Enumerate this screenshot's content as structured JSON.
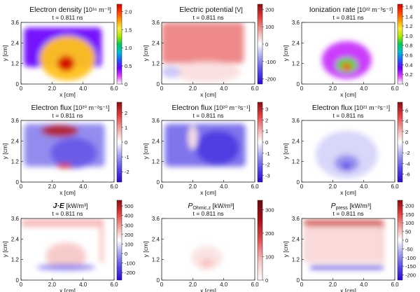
{
  "chart_data": [
    {
      "type": "heatmap",
      "title": "Electron density [10¹⁶ m⁻³]",
      "subtitle": "t = 0.811 ns",
      "xlabel": "x [cm]",
      "ylabel": "y [cm]",
      "xlim": [
        0,
        6.0
      ],
      "ylim": [
        0,
        3.6
      ],
      "x_ticks": [
        "0",
        "2.0",
        "4.0",
        "6.0"
      ],
      "y_ticks": [
        "0",
        "1.2",
        "2.4",
        "3.6"
      ],
      "colorbar": {
        "ticks": [
          "0",
          "0.5",
          "1.0",
          "1.5",
          "2.0"
        ],
        "range": [
          0,
          2.2
        ],
        "colormap": "rainbow"
      },
      "features": [
        {
          "shape": "slab",
          "x": [
            0.2,
            5.2
          ],
          "y": [
            1.0,
            3.3
          ],
          "level": 0.2
        },
        {
          "shape": "blob",
          "x": 3.0,
          "y": 1.5,
          "rx": 1.8,
          "ry": 1.3,
          "level": 0.75
        },
        {
          "shape": "blob",
          "x": 2.9,
          "y": 1.2,
          "rx": 0.55,
          "ry": 0.45,
          "level": 1.0
        }
      ]
    },
    {
      "type": "heatmap",
      "title": "Electric potential [V]",
      "subtitle": "t = 0.811 ns",
      "xlabel": "x [cm]",
      "ylabel": "y [cm]",
      "xlim": [
        0,
        6.0
      ],
      "ylim": [
        0,
        3.6
      ],
      "x_ticks": [
        "0",
        "2.0",
        "4.0",
        "6.0"
      ],
      "y_ticks": [
        "0",
        "1.2",
        "2.4",
        "3.6"
      ],
      "colorbar": {
        "ticks": [
          "200",
          "100",
          "0",
          "-100",
          "-200"
        ],
        "range": [
          -230,
          230
        ],
        "colormap": "diverging"
      },
      "features": [
        {
          "shape": "slab",
          "x": [
            0.0,
            5.3
          ],
          "y": [
            1.2,
            3.6
          ],
          "level": 0.45
        },
        {
          "shape": "blob",
          "x": 2.9,
          "y": 0.7,
          "rx": 2.2,
          "ry": 0.6,
          "level": 0.12
        },
        {
          "shape": "blob",
          "x": 0.6,
          "y": 0.7,
          "rx": 0.6,
          "ry": 0.35,
          "level": -0.2
        }
      ]
    },
    {
      "type": "heatmap",
      "title": "Ionization rate [10²² m⁻³s⁻¹]",
      "subtitle": "t = 0.811 ns",
      "xlabel": "x [cm]",
      "ylabel": "y [cm]",
      "xlim": [
        0,
        6.0
      ],
      "ylim": [
        0,
        3.6
      ],
      "x_ticks": [
        "0",
        "2.0",
        "4.0",
        "6.0"
      ],
      "y_ticks": [
        "0",
        "1.2",
        "2.4",
        "3.6"
      ],
      "colorbar": {
        "ticks": [
          "0",
          "0.2",
          "0.4",
          "0.6",
          "0.8",
          "1.0",
          "1.2",
          "1.4",
          "1.6"
        ],
        "range": [
          0,
          1.65
        ],
        "colormap": "rainbow"
      },
      "features": [
        {
          "shape": "blob",
          "x": 2.9,
          "y": 1.4,
          "rx": 1.6,
          "ry": 1.1,
          "level": 0.12
        },
        {
          "shape": "blob",
          "x": 2.9,
          "y": 1.1,
          "rx": 0.7,
          "ry": 0.45,
          "level": 0.55
        },
        {
          "shape": "blob",
          "x": 2.9,
          "y": 1.0,
          "rx": 0.3,
          "ry": 0.2,
          "level": 0.9
        }
      ]
    },
    {
      "type": "heatmap",
      "title": "Electron flux [10²⁰ m⁻²s⁻¹]",
      "subtitle": "t = 0.811 ns",
      "xlabel": "x [cm]",
      "ylabel": "y [cm]",
      "xlim": [
        0,
        6.0
      ],
      "ylim": [
        0,
        3.6
      ],
      "x_ticks": [
        "0",
        "2.0",
        "4.0",
        "6.0"
      ],
      "y_ticks": [
        "0",
        "1.2",
        "2.4",
        "3.6"
      ],
      "colorbar": {
        "ticks": [
          "2",
          "1",
          "0",
          "-1",
          "-2"
        ],
        "range": [
          -2.7,
          2.7
        ],
        "colormap": "diverging"
      },
      "features": [
        {
          "shape": "slab",
          "x": [
            0.2,
            5.4
          ],
          "y": [
            0.9,
            3.4
          ],
          "level": -0.45
        },
        {
          "shape": "blob",
          "x": 2.5,
          "y": 3.0,
          "rx": 1.2,
          "ry": 0.35,
          "level": 0.85
        },
        {
          "shape": "blob",
          "x": 3.4,
          "y": 1.7,
          "rx": 1.5,
          "ry": 0.9,
          "level": -0.6
        },
        {
          "shape": "blob",
          "x": 2.8,
          "y": 0.95,
          "rx": 0.5,
          "ry": 0.15,
          "level": 0.7
        }
      ]
    },
    {
      "type": "heatmap",
      "title": "Electron flux [10²⁰ m⁻²s⁻¹]",
      "subtitle": "t = 0.811 ns",
      "xlabel": "x [cm]",
      "ylabel": "y [cm]",
      "xlim": [
        0,
        6.0
      ],
      "ylim": [
        0,
        3.6
      ],
      "x_ticks": [
        "0",
        "2.0",
        "4.0",
        "6.0"
      ],
      "y_ticks": [
        "0",
        "1.2",
        "2.4",
        "3.6"
      ],
      "colorbar": {
        "ticks": [
          "3",
          "2",
          "1",
          "0",
          "-1",
          "-2",
          "-3"
        ],
        "range": [
          -3.6,
          3.6
        ],
        "colormap": "diverging"
      },
      "features": [
        {
          "shape": "slab",
          "x": [
            0.2,
            5.4
          ],
          "y": [
            0.9,
            3.4
          ],
          "level": -0.55
        },
        {
          "shape": "blob",
          "x": 3.6,
          "y": 2.0,
          "rx": 1.4,
          "ry": 1.0,
          "level": -0.75
        },
        {
          "shape": "blob",
          "x": 2.0,
          "y": 2.6,
          "rx": 0.3,
          "ry": 0.7,
          "level": 0.1
        }
      ]
    },
    {
      "type": "heatmap",
      "title": "Electron flux [10²¹ m⁻²s⁻¹]",
      "subtitle": "t = 0.811 ns",
      "xlabel": "x [cm]",
      "ylabel": "y [cm]",
      "xlim": [
        0,
        6.0
      ],
      "ylim": [
        0,
        3.6
      ],
      "x_ticks": [
        "0",
        "2.0",
        "4.0",
        "6.0"
      ],
      "y_ticks": [
        "0",
        "1.2",
        "2.4",
        "3.6"
      ],
      "colorbar": {
        "ticks": [
          "6",
          "4",
          "2",
          "0",
          "-2",
          "-4",
          "-6"
        ],
        "range": [
          -7.5,
          7.5
        ],
        "colormap": "diverging"
      },
      "features": [
        {
          "shape": "blob",
          "x": 2.9,
          "y": 1.6,
          "rx": 2.0,
          "ry": 1.4,
          "level": -0.15
        },
        {
          "shape": "blob",
          "x": 2.9,
          "y": 1.1,
          "rx": 0.8,
          "ry": 0.5,
          "level": -0.4
        },
        {
          "shape": "blob",
          "x": 2.9,
          "y": 0.95,
          "rx": 0.3,
          "ry": 0.2,
          "level": -0.7
        }
      ]
    },
    {
      "type": "heatmap",
      "title": "J·E [kW/m³]",
      "subtitle": "t = 0.811 ns",
      "xlabel": "x [cm]",
      "ylabel": "y [cm]",
      "xlim": [
        0,
        6.0
      ],
      "ylim": [
        0,
        3.6
      ],
      "x_ticks": [
        "0",
        "2.0",
        "4.0",
        "6.0"
      ],
      "y_ticks": [
        "0",
        "1.2",
        "2.4",
        "3.6"
      ],
      "colorbar": {
        "ticks": [
          "500",
          "400",
          "300",
          "200",
          "100",
          "0",
          "-100",
          "-200"
        ],
        "range": [
          -280,
          560
        ],
        "colormap": "diverging"
      },
      "features": [
        {
          "shape": "slab",
          "x": [
            0.0,
            5.3
          ],
          "y": [
            3.1,
            3.6
          ],
          "level": 0.25
        },
        {
          "shape": "slab",
          "x": [
            5.1,
            5.3
          ],
          "y": [
            1.0,
            3.6
          ],
          "level": 0.3
        },
        {
          "shape": "blob",
          "x": 2.9,
          "y": 1.4,
          "rx": 1.3,
          "ry": 0.8,
          "level": 0.2
        },
        {
          "shape": "blob",
          "x": 2.9,
          "y": 0.75,
          "rx": 1.9,
          "ry": 0.18,
          "level": -0.45
        }
      ]
    },
    {
      "type": "heatmap",
      "title": "P_Ohmic,z [kW/m³]",
      "subtitle": "t = 0.811 ns",
      "xlabel": "x [cm]",
      "ylabel": "y [cm]",
      "xlim": [
        0,
        6.0
      ],
      "ylim": [
        0,
        3.6
      ],
      "x_ticks": [
        "0",
        "2.0",
        "4.0",
        "6.0"
      ],
      "y_ticks": [
        "0",
        "1.2",
        "2.4",
        "3.6"
      ],
      "colorbar": {
        "ticks": [
          "300",
          "200",
          "100",
          "0"
        ],
        "range": [
          0,
          340
        ],
        "colormap": "white-red"
      },
      "features": [
        {
          "shape": "blob",
          "x": 2.9,
          "y": 1.3,
          "rx": 1.0,
          "ry": 0.7,
          "level": 0.12
        },
        {
          "shape": "blob",
          "x": 2.9,
          "y": 1.0,
          "rx": 0.4,
          "ry": 0.25,
          "level": 0.25
        }
      ]
    },
    {
      "type": "heatmap",
      "title": "P_press [kW/m³]",
      "subtitle": "t = 0.811 ns",
      "xlabel": "x [cm]",
      "ylabel": "y [cm]",
      "xlim": [
        0,
        6.0
      ],
      "ylim": [
        0,
        3.6
      ],
      "x_ticks": [
        "0",
        "2.0",
        "4.0",
        "6.0"
      ],
      "y_ticks": [
        "0",
        "1.2",
        "2.4",
        "3.6"
      ],
      "colorbar": {
        "ticks": [
          "200",
          "150",
          "100",
          "50",
          "0",
          "-50",
          "-100",
          "-150",
          "-200"
        ],
        "range": [
          -230,
          230
        ],
        "colormap": "diverging"
      },
      "features": [
        {
          "shape": "slab",
          "x": [
            0.1,
            5.3
          ],
          "y": [
            3.15,
            3.5
          ],
          "level": 0.75
        },
        {
          "shape": "slab",
          "x": [
            5.1,
            5.3
          ],
          "y": [
            1.0,
            3.5
          ],
          "level": 0.55
        },
        {
          "shape": "slab",
          "x": [
            0.1,
            5.3
          ],
          "y": [
            1.0,
            3.15
          ],
          "level": 0.15
        },
        {
          "shape": "slab",
          "x": [
            0.5,
            5.3
          ],
          "y": [
            0.65,
            0.85
          ],
          "level": -0.85
        }
      ]
    }
  ]
}
